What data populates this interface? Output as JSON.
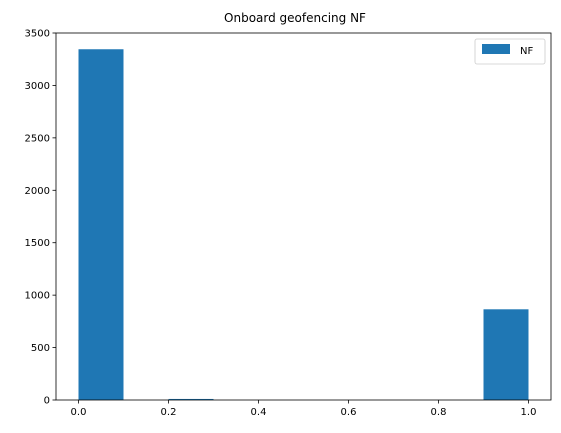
{
  "chart_data": {
    "type": "bar",
    "title": "Onboard geofencing NF",
    "xlabel": "",
    "ylabel": "",
    "xlim": [
      -0.05,
      1.05
    ],
    "ylim": [
      0,
      3500
    ],
    "x_ticks": [
      0.0,
      0.2,
      0.4,
      0.6,
      0.8,
      1.0
    ],
    "x_tick_labels": [
      "0.0",
      "0.2",
      "0.4",
      "0.6",
      "0.8",
      "1.0"
    ],
    "y_ticks": [
      0,
      500,
      1000,
      1500,
      2000,
      2500,
      3000,
      3500
    ],
    "y_tick_labels": [
      "0",
      "500",
      "1000",
      "1500",
      "2000",
      "2500",
      "3000",
      "3500"
    ],
    "bin_edges": [
      0.0,
      0.1,
      0.2,
      0.3,
      0.4,
      0.5,
      0.6,
      0.7,
      0.8,
      0.9,
      1.0
    ],
    "series": [
      {
        "name": "NF",
        "color": "#1f77b4",
        "values": [
          3345,
          0,
          10,
          0,
          0,
          0,
          0,
          0,
          0,
          865
        ]
      }
    ],
    "legend": {
      "position": "top-right",
      "entries": [
        "NF"
      ]
    },
    "grid": false
  }
}
